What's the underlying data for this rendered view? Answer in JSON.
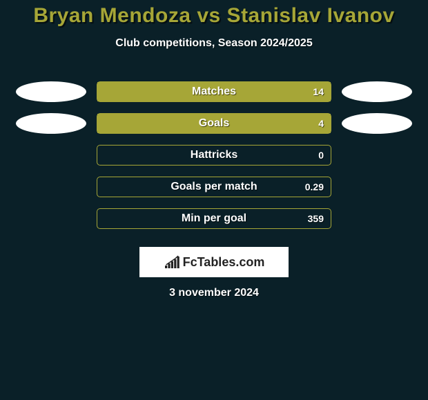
{
  "background_color": "#0a2028",
  "title": {
    "text": "Bryan Mendoza vs Stanislav Ivanov",
    "color": "#a6a637",
    "fontsize": 30
  },
  "subtitle": {
    "text": "Club competitions, Season 2024/2025",
    "color": "#ffffff",
    "fontsize": 16
  },
  "stats_chart": {
    "type": "bar",
    "bar_border_color": "#a6a637",
    "bar_fill_color": "#a6a637",
    "label_color": "#ffffff",
    "label_fontsize": 16,
    "value_color": "#ffffff",
    "value_fontsize": 14,
    "ellipse_color": "#ffffff",
    "rows": [
      {
        "label": "Matches",
        "value": "14",
        "fill_percent": 100,
        "left_ellipse": true,
        "right_ellipse": true
      },
      {
        "label": "Goals",
        "value": "4",
        "fill_percent": 100,
        "left_ellipse": true,
        "right_ellipse": true
      },
      {
        "label": "Hattricks",
        "value": "0",
        "fill_percent": 0,
        "left_ellipse": false,
        "right_ellipse": false
      },
      {
        "label": "Goals per match",
        "value": "0.29",
        "fill_percent": 0,
        "left_ellipse": false,
        "right_ellipse": false
      },
      {
        "label": "Min per goal",
        "value": "359",
        "fill_percent": 0,
        "left_ellipse": false,
        "right_ellipse": false
      }
    ]
  },
  "footer_logo": {
    "text": "FcTables.com",
    "box_background": "#ffffff",
    "text_color": "#222222",
    "bar_heights": [
      4,
      7,
      10,
      13,
      17
    ],
    "fontsize": 18
  },
  "date": {
    "text": "3 november 2024",
    "color": "#ffffff",
    "fontsize": 16
  }
}
